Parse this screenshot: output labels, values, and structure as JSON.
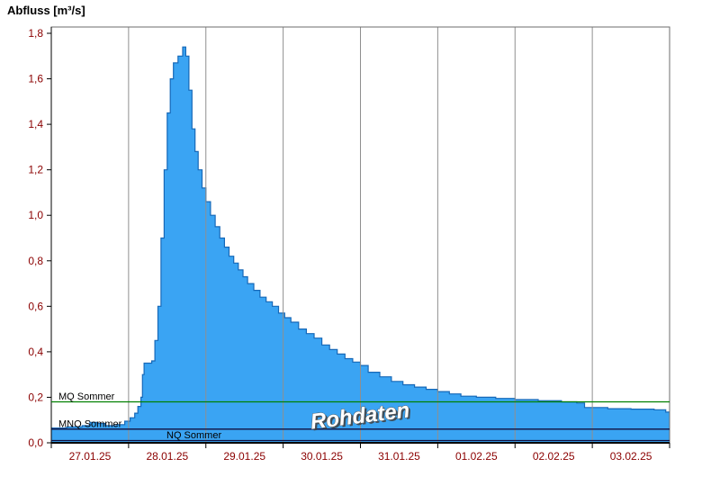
{
  "title": "Abfluss [m³/s]",
  "watermark": "Rohdaten",
  "chart_data": {
    "type": "area",
    "title": "Abfluss [m³/s]",
    "ylabel": "Abfluss [m³/s]",
    "xlabel": "",
    "ylim": [
      0,
      1.8
    ],
    "y_tick_step": 0.2,
    "y_tick_labels": [
      "0,0",
      "0,2",
      "0,4",
      "0,6",
      "0,8",
      "1,0",
      "1,2",
      "1,4",
      "1,6",
      "1,8"
    ],
    "x_labels": [
      "27.01.25",
      "28.01.25",
      "29.01.25",
      "30.01.25",
      "31.01.25",
      "01.02.25",
      "02.02.25",
      "03.02.25"
    ],
    "x_range_days": [
      0,
      8
    ],
    "grid": "vertical-day-lines",
    "legend": "none",
    "series": [
      {
        "name": "Abfluss Rohdaten",
        "step": "after",
        "x_days": [
          0,
          0.2,
          0.4,
          0.5,
          0.6,
          0.7,
          0.85,
          0.95,
          1.02,
          1.08,
          1.12,
          1.16,
          1.18,
          1.2,
          1.3,
          1.34,
          1.38,
          1.42,
          1.46,
          1.5,
          1.54,
          1.58,
          1.64,
          1.7,
          1.74,
          1.78,
          1.82,
          1.86,
          1.9,
          1.95,
          2.0,
          2.06,
          2.12,
          2.18,
          2.24,
          2.3,
          2.36,
          2.42,
          2.48,
          2.54,
          2.62,
          2.7,
          2.78,
          2.86,
          2.94,
          3.02,
          3.1,
          3.2,
          3.3,
          3.4,
          3.5,
          3.6,
          3.7,
          3.8,
          3.9,
          4.0,
          4.1,
          4.25,
          4.4,
          4.55,
          4.7,
          4.85,
          5.0,
          5.15,
          5.3,
          5.5,
          5.75,
          6.0,
          6.3,
          6.6,
          6.8,
          6.9,
          7.2,
          7.5,
          7.8,
          7.95,
          8.0
        ],
        "values": [
          0.065,
          0.07,
          0.075,
          0.09,
          0.085,
          0.075,
          0.08,
          0.095,
          0.11,
          0.13,
          0.16,
          0.2,
          0.3,
          0.35,
          0.36,
          0.45,
          0.6,
          0.9,
          1.2,
          1.45,
          1.6,
          1.67,
          1.7,
          1.74,
          1.7,
          1.55,
          1.38,
          1.28,
          1.2,
          1.12,
          1.06,
          1.0,
          0.95,
          0.9,
          0.86,
          0.82,
          0.79,
          0.76,
          0.73,
          0.7,
          0.67,
          0.64,
          0.62,
          0.6,
          0.57,
          0.55,
          0.53,
          0.5,
          0.48,
          0.46,
          0.43,
          0.41,
          0.39,
          0.37,
          0.355,
          0.34,
          0.31,
          0.29,
          0.27,
          0.255,
          0.245,
          0.235,
          0.225,
          0.215,
          0.205,
          0.2,
          0.195,
          0.19,
          0.185,
          0.18,
          0.175,
          0.155,
          0.15,
          0.148,
          0.145,
          0.135,
          0.135
        ]
      }
    ],
    "reference_lines": [
      {
        "label": "MQ Sommer",
        "value": 0.18,
        "color": "#008000"
      },
      {
        "label": "MNQ Sommer",
        "value": 0.06,
        "color": "#101040"
      },
      {
        "label": "NQ Sommer",
        "value": 0.01,
        "color": "#101040"
      }
    ],
    "peak_value": 1.74,
    "colors": {
      "area_fill": "#3aa4f3",
      "area_stroke": "#1668b8",
      "grid": "#8f8f8f",
      "axis_text": "#8b0000",
      "frame": "#6e6e6e",
      "axis_line": "#000000"
    }
  }
}
